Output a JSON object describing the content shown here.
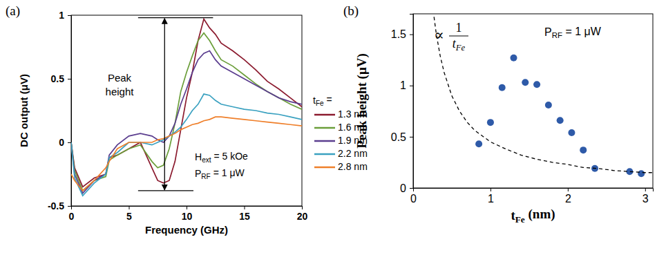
{
  "chart_data": [
    {
      "type": "line",
      "panel_label": "(a)",
      "x_label": "Frequency (GHz)",
      "y_label": "DC output (μV)",
      "xlim": [
        0,
        20
      ],
      "xticks": [
        0,
        5,
        10,
        15,
        20
      ],
      "ylim": [
        -0.5,
        1
      ],
      "yticks": [
        -0.5,
        0,
        0.5,
        1
      ],
      "legend": "right",
      "legend_title": [
        {
          "text": "t"
        },
        {
          "text": "Fe",
          "sub": true
        },
        {
          "text": " ="
        }
      ],
      "x": [
        0,
        0.3,
        1,
        2,
        3,
        3.3,
        4,
        5,
        6,
        7,
        7.5,
        8,
        8.5,
        9,
        9.5,
        10,
        10.5,
        11,
        11.5,
        12,
        12.5,
        13,
        14,
        15,
        16,
        17,
        18,
        19,
        20
      ],
      "series": [
        {
          "name": "1.3 nm",
          "color": "#8b1a2e",
          "values": [
            0,
            -0.2,
            -0.35,
            -0.28,
            -0.25,
            -0.12,
            -0.1,
            -0.05,
            0,
            -0.2,
            -0.3,
            -0.32,
            -0.3,
            -0.15,
            0.1,
            0.35,
            0.55,
            0.8,
            0.97,
            0.9,
            0.85,
            0.78,
            0.72,
            0.65,
            0.57,
            0.48,
            0.42,
            0.35,
            0.28
          ]
        },
        {
          "name": "1.6 nm",
          "color": "#6b9e3a",
          "values": [
            0,
            -0.22,
            -0.38,
            -0.3,
            -0.27,
            -0.14,
            -0.1,
            -0.05,
            -0.02,
            -0.15,
            -0.2,
            -0.18,
            -0.05,
            0.15,
            0.4,
            0.55,
            0.68,
            0.8,
            0.86,
            0.8,
            0.72,
            0.65,
            0.6,
            0.53,
            0.46,
            0.4,
            0.35,
            0.3,
            0.26
          ]
        },
        {
          "name": "1.9 nm",
          "color": "#5a3d8e",
          "values": [
            0,
            -0.25,
            -0.4,
            -0.3,
            -0.25,
            -0.1,
            -0.02,
            0.05,
            0.07,
            0.05,
            0.02,
            0,
            0.05,
            0.15,
            0.3,
            0.42,
            0.55,
            0.65,
            0.7,
            0.72,
            0.65,
            0.6,
            0.55,
            0.5,
            0.45,
            0.4,
            0.35,
            0.32,
            0.3
          ]
        },
        {
          "name": "2.2 nm",
          "color": "#3aa1c0",
          "values": [
            0,
            -0.28,
            -0.42,
            -0.32,
            -0.25,
            -0.12,
            -0.08,
            0,
            0,
            -0.02,
            0,
            0.02,
            0.05,
            0.08,
            0.12,
            0.18,
            0.25,
            0.3,
            0.38,
            0.37,
            0.33,
            0.3,
            0.28,
            0.26,
            0.25,
            0.23,
            0.22,
            0.2,
            0.18
          ]
        },
        {
          "name": "2.8 nm",
          "color": "#ef7f2a",
          "values": [
            -0.25,
            -0.3,
            -0.38,
            -0.3,
            -0.2,
            -0.15,
            -0.05,
            0,
            0,
            0,
            0.02,
            0.03,
            0.05,
            0.07,
            0.1,
            0.12,
            0.14,
            0.15,
            0.17,
            0.18,
            0.2,
            0.2,
            0.19,
            0.18,
            0.17,
            0.16,
            0.15,
            0.14,
            0.13
          ]
        }
      ],
      "peak_marker": {
        "x": 8.1,
        "top": 0.98,
        "bottom": -0.38,
        "top_from": 5.8,
        "top_to": 12.3,
        "bottom_from": 5.8,
        "bottom_to": 10.6
      },
      "annotations": [
        {
          "lines": [
            [
              {
                "text": "Peak"
              }
            ],
            [
              {
                "text": "height"
              }
            ]
          ]
        },
        {
          "lines": [
            [
              {
                "text": "H"
              },
              {
                "text": "ext",
                "sub": true
              },
              {
                "text": " = 5 kOe"
              }
            ]
          ]
        },
        {
          "lines": [
            [
              {
                "text": "P"
              },
              {
                "text": "RF",
                "sub": true
              },
              {
                "text": " = 1 μW"
              }
            ]
          ]
        }
      ]
    },
    {
      "type": "scatter",
      "panel_label": "(b)",
      "x_label": [
        {
          "text": "t"
        },
        {
          "text": "Fe",
          "sub": true
        },
        {
          "text": " (nm)"
        }
      ],
      "y_label": "Peak height (μV)",
      "xlim": [
        0,
        3.1
      ],
      "xticks": [
        0,
        1,
        2,
        3
      ],
      "ylim": [
        0,
        1.7
      ],
      "yticks": [
        0,
        0.5,
        1,
        1.5
      ],
      "series": [
        {
          "color": "#2e5aa8",
          "marker": "circle",
          "x": [
            0.85,
            1.0,
            1.15,
            1.3,
            1.45,
            1.6,
            1.75,
            1.9,
            2.05,
            2.2,
            2.35,
            2.8,
            2.95
          ],
          "values": [
            0.43,
            0.64,
            0.98,
            1.27,
            1.03,
            1.01,
            0.81,
            0.66,
            0.54,
            0.37,
            0.19,
            0.16,
            0.14
          ]
        },
        {
          "type": "line",
          "line_style": "dashed",
          "color": "#000000",
          "x": [
            0.27,
            0.3,
            0.35,
            0.4,
            0.5,
            0.6,
            0.7,
            0.8,
            1.0,
            1.2,
            1.4,
            1.6,
            1.8,
            2.0,
            2.2,
            2.4,
            2.6,
            2.8,
            3.0,
            3.1
          ],
          "values": [
            1.67,
            1.5,
            1.29,
            1.13,
            0.9,
            0.75,
            0.64,
            0.56,
            0.45,
            0.38,
            0.32,
            0.28,
            0.25,
            0.23,
            0.2,
            0.19,
            0.17,
            0.16,
            0.15,
            0.15
          ]
        }
      ],
      "annotations": [
        {
          "prefix": "∝",
          "numerator": "1",
          "denominator": [
            {
              "text": "t"
            },
            {
              "text": "Fe",
              "sub": true
            }
          ]
        },
        {
          "lines": [
            [
              {
                "text": "P"
              },
              {
                "text": "RF",
                "sub": true
              },
              {
                "text": " = 1 μW"
              }
            ]
          ]
        }
      ]
    }
  ]
}
